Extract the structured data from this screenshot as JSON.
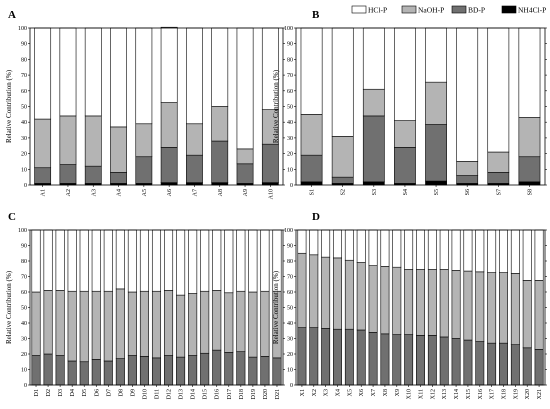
{
  "colors": {
    "HCl-P": "#ffffff",
    "NaOH-P": "#b4b4b4",
    "BD-P": "#707070",
    "NH4Cl-P": "#000000",
    "edge": "#000000"
  },
  "legend": {
    "items": [
      {
        "name": "HCl-P",
        "color_key": "HCl-P"
      },
      {
        "name": "NaOH-P",
        "color_key": "NaOH-P"
      },
      {
        "name": "BD-P",
        "color_key": "BD-P"
      },
      {
        "name": "NH4Cl-P",
        "color_key": "NH4Cl-P"
      }
    ]
  },
  "chart_data": [
    {
      "panel": "A",
      "type": "bar",
      "stacked": true,
      "ylabel": "Relative Contribution (%)",
      "ylim": [
        0,
        100
      ],
      "yticks": [
        "0",
        "10",
        "20",
        "30",
        "40",
        "50",
        "60",
        "70",
        "80",
        "90",
        "100"
      ],
      "categories": [
        "A1",
        "A2",
        "A3",
        "A4",
        "A5",
        "A6",
        "A7",
        "A8",
        "A9",
        "A10"
      ],
      "series": [
        {
          "name": "NH4Cl-P",
          "values": [
            1,
            1,
            1,
            1,
            1,
            1.5,
            1.5,
            1.5,
            1,
            1.5
          ]
        },
        {
          "name": "BD-P",
          "values": [
            10,
            12,
            11,
            7,
            17,
            22.5,
            17.5,
            26.5,
            12.5,
            24.5
          ]
        },
        {
          "name": "NaOH-P",
          "values": [
            31,
            31,
            32,
            29,
            21,
            28.5,
            20,
            22,
            9.5,
            22
          ]
        },
        {
          "name": "HCl-P",
          "values": [
            58,
            56,
            56,
            63,
            61,
            48,
            61,
            50,
            77,
            52
          ]
        }
      ]
    },
    {
      "panel": "B",
      "type": "bar",
      "stacked": true,
      "ylabel": "Relative Contribution (%)",
      "ylim": [
        0,
        100
      ],
      "yticks": [
        "0",
        "10",
        "20",
        "30",
        "40",
        "50",
        "60",
        "70",
        "80",
        "90",
        "100"
      ],
      "categories": [
        "S1",
        "S2",
        "S3",
        "S4",
        "S5",
        "S6",
        "S7",
        "S8"
      ],
      "series": [
        {
          "name": "NH4Cl-P",
          "values": [
            2,
            1,
            2,
            1,
            2.5,
            1,
            1,
            2
          ]
        },
        {
          "name": "BD-P",
          "values": [
            17,
            4,
            42,
            23,
            36,
            5,
            7,
            16
          ]
        },
        {
          "name": "NaOH-P",
          "values": [
            26,
            26,
            17,
            17,
            27,
            9,
            13,
            25
          ]
        },
        {
          "name": "HCl-P",
          "values": [
            55,
            69,
            39,
            59,
            34.5,
            85,
            79,
            57
          ]
        }
      ]
    },
    {
      "panel": "C",
      "type": "bar",
      "stacked": true,
      "ylabel": "Relative Contribution (%)",
      "ylim": [
        0,
        100
      ],
      "yticks": [
        "0",
        "10",
        "20",
        "30",
        "40",
        "50",
        "60",
        "70",
        "80",
        "90",
        "100"
      ],
      "categories": [
        "D1",
        "D2",
        "D3",
        "D4",
        "D5",
        "D6",
        "D7",
        "D8",
        "D9",
        "D10",
        "D11",
        "D12",
        "D13",
        "D14",
        "D15",
        "D16",
        "D17",
        "D18",
        "D19",
        "D20",
        "D21"
      ],
      "series": [
        {
          "name": "BD-P",
          "values": [
            19,
            20,
            19,
            15.5,
            15,
            16.5,
            15.5,
            17,
            19,
            18.5,
            17.5,
            19,
            18,
            19,
            20.5,
            22.5,
            21,
            21.5,
            18,
            18.5,
            17.5
          ]
        },
        {
          "name": "NaOH-P",
          "values": [
            41,
            41,
            42,
            45,
            45.5,
            44,
            45,
            45,
            41,
            42,
            43,
            42,
            40,
            40,
            40,
            38.5,
            38.5,
            39,
            42,
            42,
            43
          ]
        },
        {
          "name": "HCl-P",
          "values": [
            40,
            39,
            39,
            39.5,
            39.5,
            39.5,
            39.5,
            38,
            40,
            39.5,
            39.5,
            39,
            42,
            41,
            39.5,
            39,
            40.5,
            39.5,
            40,
            39.5,
            39.5
          ]
        }
      ]
    },
    {
      "panel": "D",
      "type": "bar",
      "stacked": true,
      "ylabel": "Relative Contribution (%)",
      "ylim": [
        0,
        100
      ],
      "yticks": [
        "0",
        "10",
        "20",
        "30",
        "40",
        "50",
        "60",
        "70",
        "80",
        "90",
        "100"
      ],
      "categories": [
        "X1",
        "X2",
        "X3",
        "X4",
        "X5",
        "X6",
        "X7",
        "X8",
        "X9",
        "X10",
        "X11",
        "X12",
        "X13",
        "X14",
        "X15",
        "X16",
        "X17",
        "X18",
        "X19",
        "X20",
        "X21"
      ],
      "series": [
        {
          "name": "BD-P",
          "values": [
            37,
            37,
            36.5,
            36,
            36,
            35.5,
            34,
            33,
            32.5,
            32.5,
            32,
            32,
            31,
            30,
            29,
            28,
            27,
            27,
            26,
            24,
            23
          ]
        },
        {
          "name": "NaOH-P",
          "values": [
            48,
            47,
            46,
            46,
            44.5,
            43.5,
            43,
            43.5,
            43.5,
            42,
            42.5,
            42.5,
            43.5,
            44,
            44.5,
            45,
            45.5,
            45.5,
            46,
            43.5,
            44.5
          ]
        },
        {
          "name": "HCl-P",
          "values": [
            15,
            16,
            17.5,
            18,
            19.5,
            21,
            23,
            23.5,
            24,
            25.5,
            25.5,
            25.5,
            25.5,
            26,
            26.5,
            27,
            27.5,
            27.5,
            28,
            32.5,
            32.5
          ]
        }
      ]
    }
  ]
}
